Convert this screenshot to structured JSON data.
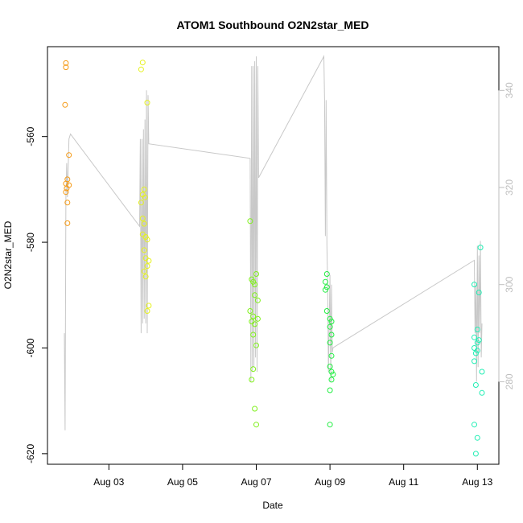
{
  "chart_data": {
    "type": "scatter",
    "title": "ATOM1 Southbound O2N2star_MED",
    "xlabel": "Date",
    "ylabel": "O2N2star_MED",
    "x_ticks": [
      "Aug 03",
      "Aug 05",
      "Aug 07",
      "Aug 09",
      "Aug 11",
      "Aug 13"
    ],
    "y_ticks": [
      -560,
      -580,
      -600,
      -620
    ],
    "y2_ticks": [
      280,
      300,
      320,
      340
    ],
    "xlim": [
      "2019-08-01 08:00",
      "2019-08-13 14:00"
    ],
    "ylim": [
      -622,
      -543
    ],
    "y2lim": [
      263,
      349
    ],
    "grid": false,
    "legend": "none",
    "scatter_points": [
      {
        "date": "2019-08-01 20:00",
        "value": -546.1,
        "color": "#F59A16"
      },
      {
        "date": "2019-08-01 20:00",
        "value": -546.9,
        "color": "#F59A16"
      },
      {
        "date": "2019-08-01 19:30",
        "value": -554.0,
        "color": "#F59A16"
      },
      {
        "date": "2019-08-01 22:00",
        "value": -563.5,
        "color": "#F59A16"
      },
      {
        "date": "2019-08-01 21:00",
        "value": -568.1,
        "color": "#F59A16"
      },
      {
        "date": "2019-08-01 20:00",
        "value": -568.9,
        "color": "#F59A16"
      },
      {
        "date": "2019-08-01 22:00",
        "value": -569.2,
        "color": "#F59A16"
      },
      {
        "date": "2019-08-01 20:30",
        "value": -569.8,
        "color": "#F59A16"
      },
      {
        "date": "2019-08-01 20:00",
        "value": -570.5,
        "color": "#F59A16"
      },
      {
        "date": "2019-08-01 21:00",
        "value": -572.5,
        "color": "#F59A16"
      },
      {
        "date": "2019-08-01 21:00",
        "value": -576.4,
        "color": "#F59A16"
      },
      {
        "date": "2019-08-03 22:00",
        "value": -546.0,
        "color": "#E6F21F"
      },
      {
        "date": "2019-08-03 21:00",
        "value": -547.3,
        "color": "#E6F21F"
      },
      {
        "date": "2019-08-04 01:00",
        "value": -553.6,
        "color": "#E6F21F"
      },
      {
        "date": "2019-08-03 23:00",
        "value": -570.0,
        "color": "#E6F21F"
      },
      {
        "date": "2019-08-03 22:00",
        "value": -571.0,
        "color": "#E6F21F"
      },
      {
        "date": "2019-08-03 23:30",
        "value": -571.5,
        "color": "#E6F21F"
      },
      {
        "date": "2019-08-03 21:00",
        "value": -572.5,
        "color": "#E6F21F"
      },
      {
        "date": "2019-08-03 22:00",
        "value": -575.5,
        "color": "#E6F21F"
      },
      {
        "date": "2019-08-03 23:00",
        "value": -576.5,
        "color": "#E6F21F"
      },
      {
        "date": "2019-08-03 22:00",
        "value": -578.5,
        "color": "#E6F21F"
      },
      {
        "date": "2019-08-04 00:00",
        "value": -579.0,
        "color": "#E6F21F"
      },
      {
        "date": "2019-08-04 01:00",
        "value": -579.5,
        "color": "#E6F21F"
      },
      {
        "date": "2019-08-03 23:00",
        "value": -581.5,
        "color": "#E6F21F"
      },
      {
        "date": "2019-08-04 00:00",
        "value": -583.0,
        "color": "#E6F21F"
      },
      {
        "date": "2019-08-04 02:00",
        "value": -583.5,
        "color": "#E6F21F"
      },
      {
        "date": "2019-08-04 01:00",
        "value": -584.5,
        "color": "#E6F21F"
      },
      {
        "date": "2019-08-03 23:00",
        "value": -585.5,
        "color": "#E6F21F"
      },
      {
        "date": "2019-08-04 00:00",
        "value": -586.5,
        "color": "#E6F21F"
      },
      {
        "date": "2019-08-04 02:00",
        "value": -592.0,
        "color": "#E6F21F"
      },
      {
        "date": "2019-08-04 01:00",
        "value": -593.0,
        "color": "#E6F21F"
      },
      {
        "date": "2019-08-06 20:00",
        "value": -576.0,
        "color": "#7FF01A"
      },
      {
        "date": "2019-08-06 21:00",
        "value": -587.0,
        "color": "#7FF01A"
      },
      {
        "date": "2019-08-07 00:00",
        "value": -586.0,
        "color": "#7FF01A"
      },
      {
        "date": "2019-08-06 23:00",
        "value": -588.0,
        "color": "#7FF01A"
      },
      {
        "date": "2019-08-06 22:00",
        "value": -587.5,
        "color": "#7FF01A"
      },
      {
        "date": "2019-08-06 23:00",
        "value": -590.0,
        "color": "#7FF01A"
      },
      {
        "date": "2019-08-07 01:00",
        "value": -591.0,
        "color": "#7FF01A"
      },
      {
        "date": "2019-08-06 20:00",
        "value": -593.0,
        "color": "#7FF01A"
      },
      {
        "date": "2019-08-06 22:00",
        "value": -594.0,
        "color": "#7FF01A"
      },
      {
        "date": "2019-08-07 01:00",
        "value": -594.5,
        "color": "#7FF01A"
      },
      {
        "date": "2019-08-06 21:00",
        "value": -595.0,
        "color": "#7FF01A"
      },
      {
        "date": "2019-08-06 23:00",
        "value": -595.5,
        "color": "#7FF01A"
      },
      {
        "date": "2019-08-06 22:00",
        "value": -597.5,
        "color": "#7FF01A"
      },
      {
        "date": "2019-08-07 00:00",
        "value": -599.5,
        "color": "#7FF01A"
      },
      {
        "date": "2019-08-06 22:00",
        "value": -604.0,
        "color": "#7FF01A"
      },
      {
        "date": "2019-08-06 21:00",
        "value": -606.0,
        "color": "#7FF01A"
      },
      {
        "date": "2019-08-06 23:00",
        "value": -611.5,
        "color": "#7FF01A"
      },
      {
        "date": "2019-08-07 00:00",
        "value": -614.5,
        "color": "#7FF01A"
      },
      {
        "date": "2019-08-08 22:00",
        "value": -586.0,
        "color": "#22EE43"
      },
      {
        "date": "2019-08-08 21:00",
        "value": -587.5,
        "color": "#22EE43"
      },
      {
        "date": "2019-08-08 22:00",
        "value": -588.5,
        "color": "#22EE43"
      },
      {
        "date": "2019-08-08 21:00",
        "value": -589.0,
        "color": "#22EE43"
      },
      {
        "date": "2019-08-08 22:00",
        "value": -593.0,
        "color": "#22EE43"
      },
      {
        "date": "2019-08-09 00:00",
        "value": -594.5,
        "color": "#22EE43"
      },
      {
        "date": "2019-08-09 01:00",
        "value": -595.0,
        "color": "#22EE43"
      },
      {
        "date": "2019-08-09 00:00",
        "value": -596.0,
        "color": "#22EE43"
      },
      {
        "date": "2019-08-09 01:00",
        "value": -597.5,
        "color": "#22EE43"
      },
      {
        "date": "2019-08-09 00:00",
        "value": -599.0,
        "color": "#22EE43"
      },
      {
        "date": "2019-08-09 01:00",
        "value": -601.5,
        "color": "#22EE43"
      },
      {
        "date": "2019-08-09 00:00",
        "value": -603.5,
        "color": "#22EE43"
      },
      {
        "date": "2019-08-09 01:00",
        "value": -604.5,
        "color": "#22EE43"
      },
      {
        "date": "2019-08-09 02:00",
        "value": -605.0,
        "color": "#22EE43"
      },
      {
        "date": "2019-08-09 01:00",
        "value": -606.0,
        "color": "#22EE43"
      },
      {
        "date": "2019-08-09 00:00",
        "value": -608.0,
        "color": "#22EE43"
      },
      {
        "date": "2019-08-09 00:00",
        "value": -614.5,
        "color": "#22EE43"
      },
      {
        "date": "2019-08-13 02:00",
        "value": -581.0,
        "color": "#22EEB4"
      },
      {
        "date": "2019-08-12 22:00",
        "value": -588.0,
        "color": "#22EEB4"
      },
      {
        "date": "2019-08-13 01:00",
        "value": -589.5,
        "color": "#22EEB4"
      },
      {
        "date": "2019-08-13 00:00",
        "value": -596.5,
        "color": "#22EEB4"
      },
      {
        "date": "2019-08-12 22:00",
        "value": -598.0,
        "color": "#22EEB4"
      },
      {
        "date": "2019-08-13 01:00",
        "value": -598.5,
        "color": "#22EEB4"
      },
      {
        "date": "2019-08-13 00:00",
        "value": -599.0,
        "color": "#22EEB4"
      },
      {
        "date": "2019-08-12 22:00",
        "value": -600.0,
        "color": "#22EEB4"
      },
      {
        "date": "2019-08-13 00:00",
        "value": -600.5,
        "color": "#22EEB4"
      },
      {
        "date": "2019-08-12 23:00",
        "value": -601.0,
        "color": "#22EEB4"
      },
      {
        "date": "2019-08-12 22:00",
        "value": -602.5,
        "color": "#22EEB4"
      },
      {
        "date": "2019-08-13 03:00",
        "value": -604.5,
        "color": "#22EEB4"
      },
      {
        "date": "2019-08-12 23:00",
        "value": -607.0,
        "color": "#22EEB4"
      },
      {
        "date": "2019-08-13 03:00",
        "value": -608.5,
        "color": "#22EEB4"
      },
      {
        "date": "2019-08-12 22:00",
        "value": -614.5,
        "color": "#22EEB4"
      },
      {
        "date": "2019-08-13 00:00",
        "value": -617.0,
        "color": "#22EEB4"
      },
      {
        "date": "2019-08-12 23:00",
        "value": -620.0,
        "color": "#22EEB4"
      }
    ],
    "line_series": {
      "axis": "right",
      "color": "#C8C8C8",
      "points": [
        [
          "2019-08-01 19:00",
          290
        ],
        [
          "2019-08-01 19:30",
          270
        ],
        [
          "2019-08-01 20:00",
          318
        ],
        [
          "2019-08-01 20:30",
          325
        ],
        [
          "2019-08-01 21:00",
          318
        ],
        [
          "2019-08-01 22:00",
          330
        ],
        [
          "2019-08-01 23:00",
          331
        ],
        [
          "2019-08-03 20:00",
          312
        ],
        [
          "2019-08-03 20:30",
          330
        ],
        [
          "2019-08-03 21:00",
          290
        ],
        [
          "2019-08-03 21:30",
          330
        ],
        [
          "2019-08-03 22:00",
          292
        ],
        [
          "2019-08-03 22:30",
          332
        ],
        [
          "2019-08-03 23:00",
          293
        ],
        [
          "2019-08-03 23:30",
          334
        ],
        [
          "2019-08-04 00:00",
          292
        ],
        [
          "2019-08-04 00:30",
          340
        ],
        [
          "2019-08-04 01:00",
          290
        ],
        [
          "2019-08-04 01:30",
          339
        ],
        [
          "2019-08-04 02:00",
          329
        ],
        [
          "2019-08-06 20:00",
          326
        ],
        [
          "2019-08-06 20:30",
          280
        ],
        [
          "2019-08-06 21:00",
          345
        ],
        [
          "2019-08-06 21:30",
          282
        ],
        [
          "2019-08-06 22:00",
          345
        ],
        [
          "2019-08-06 22:30",
          283
        ],
        [
          "2019-08-06 23:00",
          346
        ],
        [
          "2019-08-06 23:30",
          285
        ],
        [
          "2019-08-07 00:00",
          347
        ],
        [
          "2019-08-07 00:30",
          282
        ],
        [
          "2019-08-07 01:00",
          345
        ],
        [
          "2019-08-07 01:30",
          322
        ],
        [
          "2019-08-08 20:00",
          347
        ],
        [
          "2019-08-08 20:30",
          338
        ],
        [
          "2019-08-08 21:00",
          310
        ],
        [
          "2019-08-08 21:30",
          338
        ],
        [
          "2019-08-08 22:00",
          308
        ],
        [
          "2019-08-08 22:30",
          300
        ],
        [
          "2019-08-08 23:00",
          282
        ],
        [
          "2019-08-09 00:00",
          302
        ],
        [
          "2019-08-09 00:30",
          280
        ],
        [
          "2019-08-09 01:00",
          300
        ],
        [
          "2019-08-09 01:30",
          286
        ],
        [
          "2019-08-09 02:00",
          287
        ],
        [
          "2019-08-12 22:00",
          305
        ],
        [
          "2019-08-12 22:30",
          290
        ],
        [
          "2019-08-12 23:00",
          300
        ],
        [
          "2019-08-12 23:30",
          280
        ],
        [
          "2019-08-13 00:00",
          308
        ],
        [
          "2019-08-13 00:30",
          283
        ],
        [
          "2019-08-13 01:00",
          306
        ],
        [
          "2019-08-13 01:30",
          290
        ],
        [
          "2019-08-13 02:00",
          309
        ],
        [
          "2019-08-13 02:30",
          285
        ],
        [
          "2019-08-13 03:00",
          292
        ]
      ]
    }
  }
}
